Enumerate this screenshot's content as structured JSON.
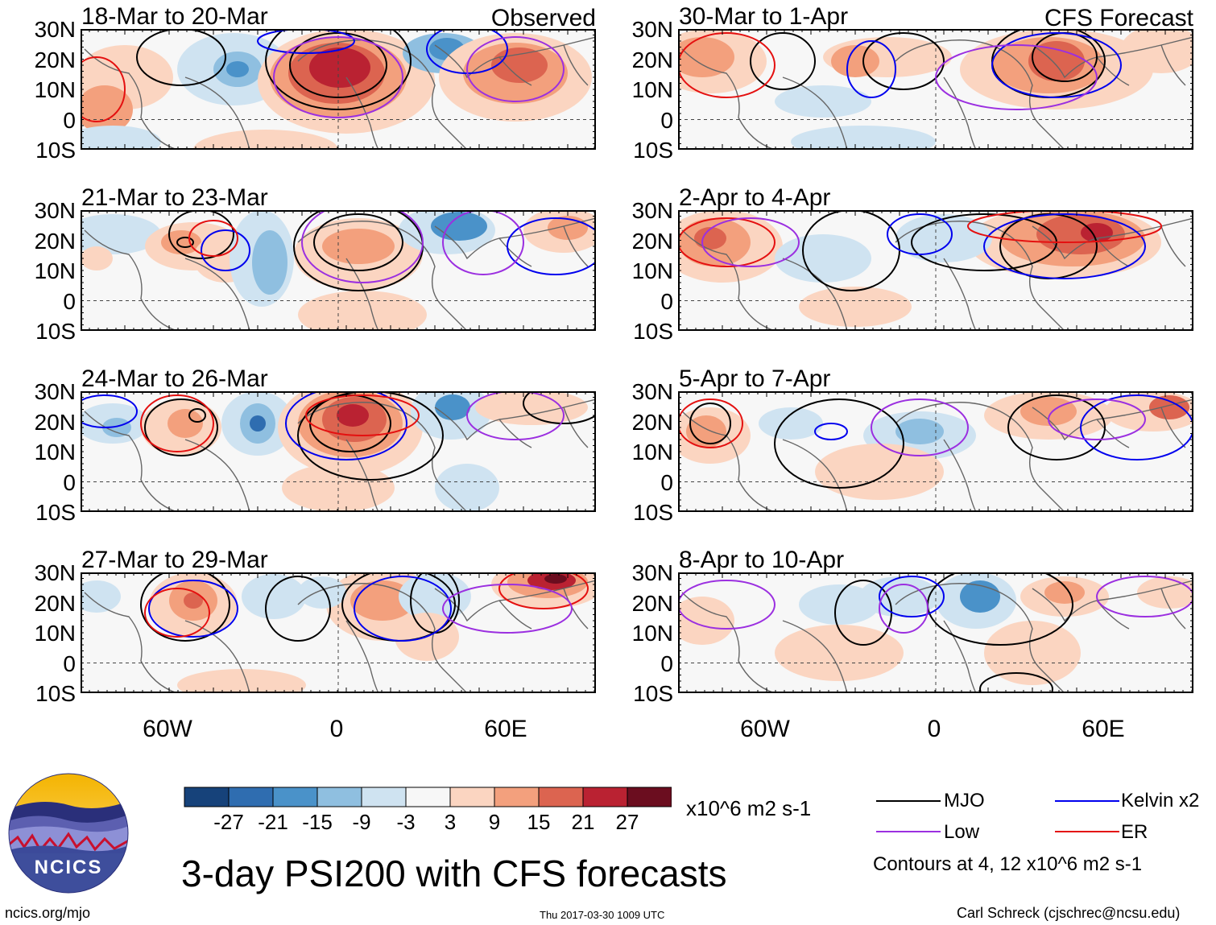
{
  "colors": {
    "blue_dark": "#16427a",
    "blue_mid": "#2f6db0",
    "blue_med": "#4a92c9",
    "blue_light": "#8fbfe0",
    "blue_pale": "#cfe3f1",
    "neutral": "#f7f7f7",
    "red_pale": "#fbd5c1",
    "red_light": "#f3a07d",
    "red_med": "#dc6450",
    "red_strong": "#ba2232",
    "red_dark": "#6b0d1f",
    "mjo": "#000000",
    "kelvin": "#0000ee",
    "low": "#9b2fe0",
    "er": "#e41010"
  },
  "panels": [
    {
      "title": "18-Mar to 20-Mar",
      "label": "Observed",
      "group": "observed"
    },
    {
      "title": "21-Mar to 23-Mar",
      "label": "",
      "group": "observed"
    },
    {
      "title": "24-Mar to 26-Mar",
      "label": "",
      "group": "observed"
    },
    {
      "title": "27-Mar to 29-Mar",
      "label": "",
      "group": "observed"
    },
    {
      "title": "30-Mar to 1-Apr",
      "label": "CFS Forecast",
      "group": "forecast"
    },
    {
      "title": "2-Apr to 4-Apr",
      "label": "",
      "group": "forecast"
    },
    {
      "title": "5-Apr to 7-Apr",
      "label": "",
      "group": "forecast"
    },
    {
      "title": "8-Apr to 10-Apr",
      "label": "",
      "group": "forecast"
    }
  ],
  "lat_labels": [
    "30N",
    "20N",
    "10N",
    "0",
    "10S"
  ],
  "lon_labels": [
    "60W",
    "0",
    "60E"
  ],
  "colorbar": {
    "unit": "x10^6 m2 s-1",
    "labels": [
      "-27",
      "-21",
      "-15",
      "-9",
      "-3",
      "3",
      "9",
      "15",
      "21",
      "27"
    ]
  },
  "legend": {
    "items": [
      {
        "label": "MJO",
        "color": "#000000"
      },
      {
        "label": "Kelvin x2",
        "color": "#0000ee"
      },
      {
        "label": "Low",
        "color": "#9b2fe0"
      },
      {
        "label": "ER",
        "color": "#e41010"
      }
    ],
    "note": "Contours at 4, 12 x10^6 m2 s-1"
  },
  "main_title": "3-day PSI200 with CFS forecasts",
  "logo_text": "NCICS",
  "footer": {
    "url": "ncics.org/mjo",
    "timestamp": "Thu 2017-03-30 1009 UTC",
    "author": "Carl Schreck (cjschrec@ncsu.edu)"
  }
}
